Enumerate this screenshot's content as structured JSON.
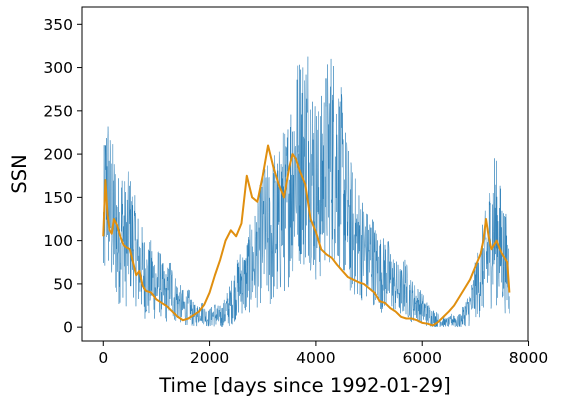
{
  "chart_data": {
    "type": "line",
    "title": "",
    "xlabel": "Time [days since 1992-01-29]",
    "ylabel": "SSN",
    "xlim": [
      -400,
      7990
    ],
    "ylim": [
      -16,
      370
    ],
    "xticks": [
      0,
      2000,
      4000,
      6000,
      8000
    ],
    "yticks": [
      0,
      50,
      100,
      150,
      200,
      250,
      300,
      350
    ],
    "grid": false,
    "legend": "none",
    "colors": {
      "raw": "#1f77b4",
      "smoothed": "#e08f0f"
    },
    "series": [
      {
        "style": "thin-raw-daily",
        "x_start": 0,
        "x_end": 7640,
        "x_step": 20,
        "y_mean": [
          105,
          170,
          130,
          120,
          100,
          115,
          95,
          110,
          100,
          80,
          70,
          60,
          50,
          60,
          45,
          55,
          40,
          35,
          50,
          35,
          30,
          25,
          20,
          25,
          15,
          12,
          20,
          15,
          10,
          12,
          15,
          10,
          12,
          20,
          25,
          35,
          45,
          55,
          50,
          65,
          70,
          80,
          95,
          110,
          105,
          100,
          120,
          110,
          140,
          130,
          160,
          180,
          190,
          200,
          195,
          210,
          180,
          160,
          150,
          175,
          190,
          200,
          195,
          180,
          170,
          140,
          120,
          110,
          100,
          95,
          90,
          80,
          85,
          70,
          65,
          60,
          65,
          55,
          50,
          45,
          40,
          50,
          35,
          30,
          28,
          25,
          20,
          15,
          12,
          10,
          8,
          6,
          5,
          6,
          10,
          5,
          8,
          15,
          20,
          30,
          45,
          55,
          70,
          80,
          100,
          120,
          100,
          90,
          75,
          60
        ],
        "y_spread": [
          90,
          100,
          95,
          90,
          80,
          80,
          75,
          75,
          65,
          60,
          55,
          50,
          45,
          45,
          40,
          40,
          35,
          30,
          35,
          30,
          25,
          22,
          20,
          20,
          15,
          12,
          15,
          12,
          10,
          12,
          15,
          15,
          15,
          20,
          25,
          30,
          35,
          40,
          40,
          50,
          55,
          60,
          70,
          80,
          85,
          85,
          90,
          90,
          100,
          95,
          110,
          120,
          125,
          130,
          130,
          135,
          120,
          110,
          105,
          110,
          120,
          130,
          125,
          115,
          105,
          95,
          85,
          75,
          70,
          65,
          60,
          55,
          55,
          50,
          45,
          45,
          45,
          40,
          35,
          30,
          30,
          35,
          28,
          25,
          22,
          20,
          18,
          15,
          12,
          10,
          8,
          6,
          6,
          6,
          10,
          8,
          10,
          15,
          20,
          25,
          35,
          45,
          55,
          65,
          80,
          90,
          80,
          70,
          60,
          50
        ]
      },
      {
        "style": "smoothed",
        "x": [
          0,
          40,
          80,
          120,
          160,
          200,
          260,
          320,
          380,
          440,
          500,
          560,
          620,
          680,
          740,
          800,
          900,
          1000,
          1100,
          1200,
          1300,
          1400,
          1500,
          1600,
          1700,
          1800,
          1900,
          2000,
          2100,
          2200,
          2300,
          2400,
          2500,
          2600,
          2700,
          2800,
          2900,
          3000,
          3100,
          3200,
          3300,
          3400,
          3500,
          3560,
          3620,
          3700,
          3800,
          3900,
          4000,
          4100,
          4200,
          4300,
          4400,
          4500,
          4600,
          4700,
          4800,
          4900,
          5000,
          5100,
          5200,
          5300,
          5400,
          5500,
          5600,
          5700,
          5800,
          5900,
          6000,
          6100,
          6200,
          6300,
          6400,
          6500,
          6600,
          6700,
          6800,
          6900,
          7000,
          7100,
          7150,
          7200,
          7250,
          7300,
          7350,
          7400,
          7450,
          7500,
          7550,
          7600,
          7640
        ],
        "y": [
          105,
          170,
          130,
          112,
          108,
          125,
          118,
          105,
          95,
          92,
          90,
          75,
          60,
          65,
          48,
          42,
          40,
          32,
          28,
          24,
          18,
          12,
          8,
          10,
          14,
          18,
          26,
          40,
          60,
          78,
          100,
          112,
          105,
          120,
          175,
          150,
          145,
          175,
          210,
          185,
          165,
          150,
          185,
          200,
          195,
          180,
          165,
          125,
          110,
          90,
          84,
          80,
          72,
          65,
          58,
          55,
          52,
          50,
          45,
          40,
          30,
          28,
          22,
          18,
          12,
          10,
          10,
          8,
          5,
          4,
          2,
          6,
          12,
          18,
          25,
          35,
          45,
          55,
          70,
          85,
          100,
          125,
          105,
          90,
          95,
          100,
          92,
          85,
          80,
          75,
          40
        ]
      }
    ]
  }
}
